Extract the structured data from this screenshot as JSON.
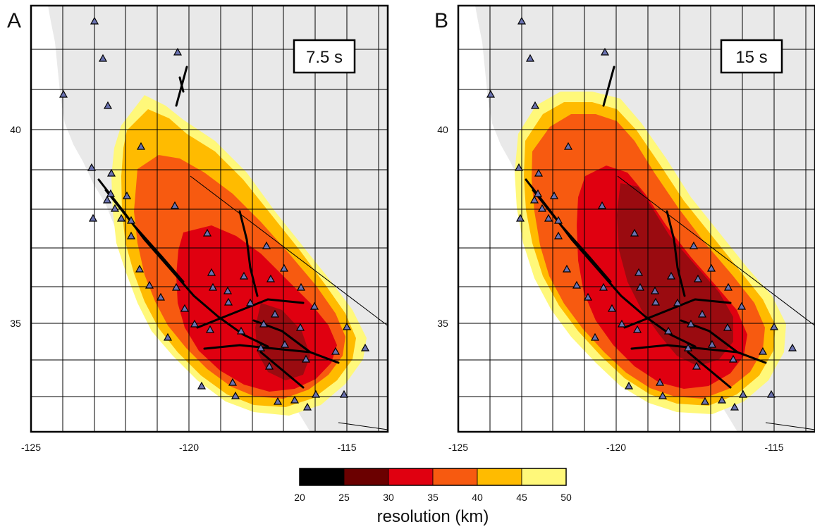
{
  "panels": [
    {
      "letter": "A",
      "period_label": "7.5 s"
    },
    {
      "letter": "B",
      "period_label": "15 s"
    }
  ],
  "axes": {
    "x_ticks": [
      "-125",
      "-120",
      "-115"
    ],
    "y_ticks": [
      "40",
      "35"
    ]
  },
  "colorbar": {
    "title": "resolution (km)",
    "tick_labels": [
      "20",
      "25",
      "30",
      "35",
      "40",
      "45",
      "50"
    ],
    "colors": [
      "#000000",
      "#6b0000",
      "#e00010",
      "#f75a10",
      "#ffbb00",
      "#fff87a"
    ]
  },
  "colors": {
    "station_fill": "#6a72b0",
    "fault_line": "#000000",
    "background_relief": "#e9e9e9"
  },
  "icons": {
    "station_marker": "triangle-icon"
  }
}
